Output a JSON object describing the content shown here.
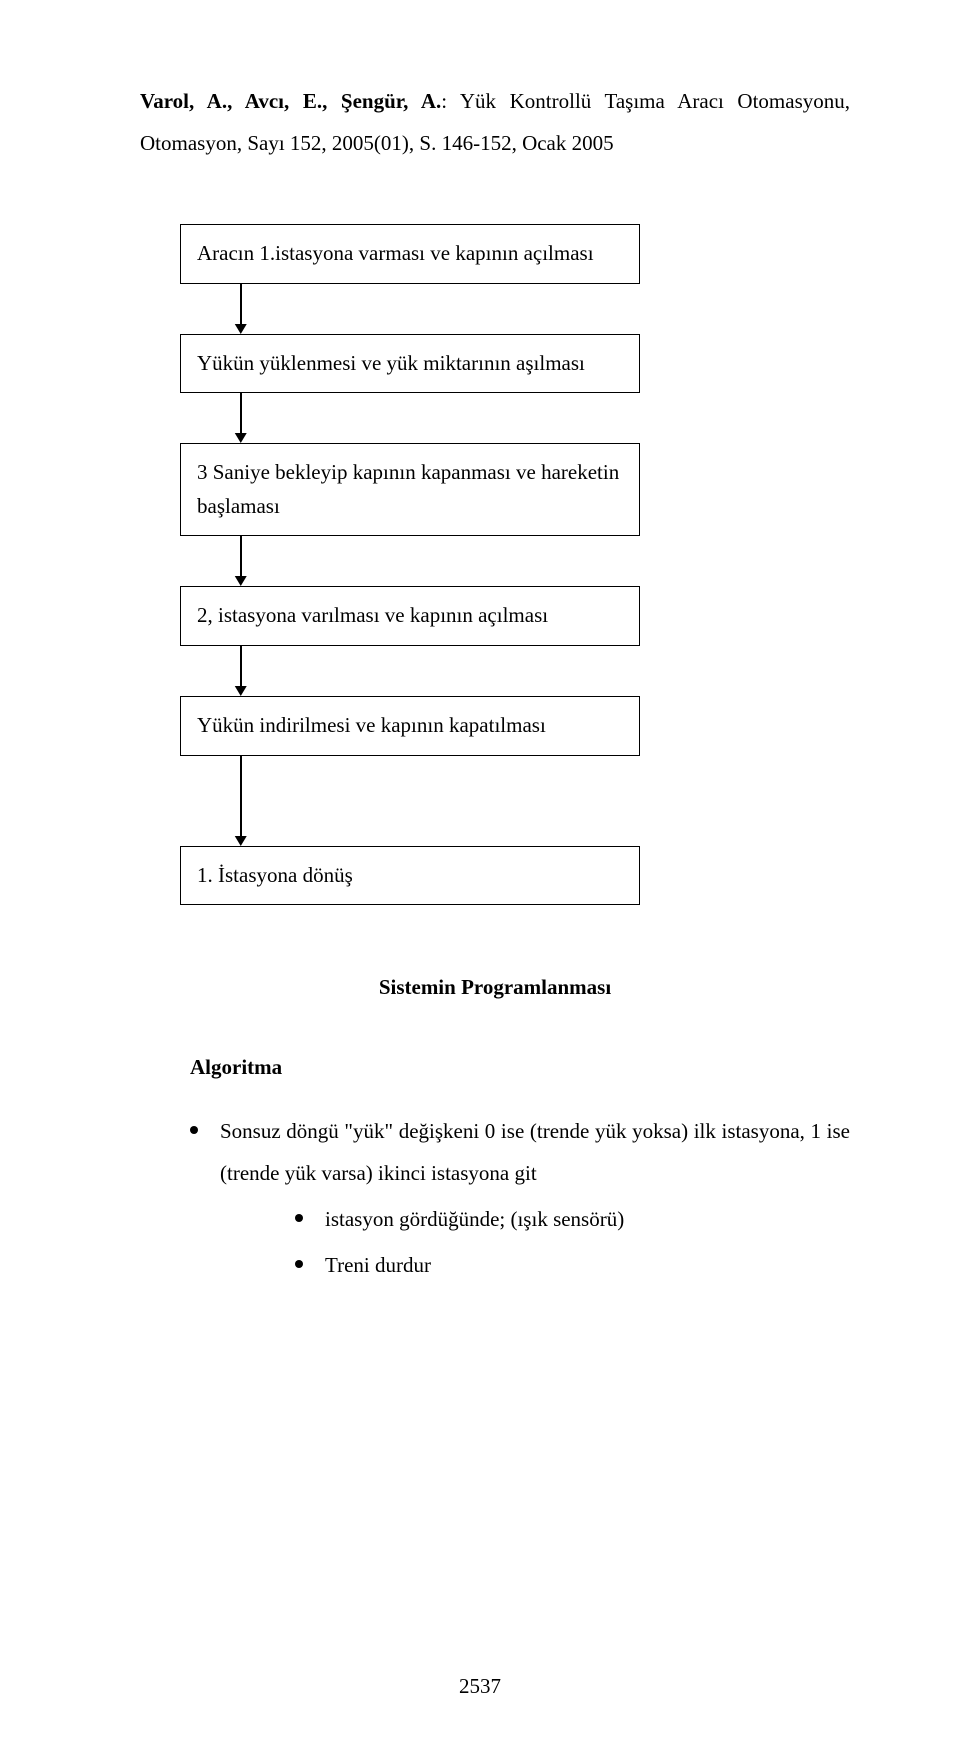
{
  "header": {
    "authors_bold": "Varol, A., Avcı, E., Şengür, A.",
    "title_rest": ": Yük Kontrollü Taşıma Aracı Otomasyonu, Otomasyon, Sayı 152, 2005(01), S. 146-152, Ocak 2005"
  },
  "flow": {
    "box1": "Aracın 1.istasyona varması ve kapının açılması",
    "box2": "Yükün yüklenmesi ve yük miktarının aşılması",
    "box3": "3 Saniye bekleyip kapının kapanması ve hareketin başlaması",
    "box4": "2, istasyona varılması ve kapının açılması",
    "box5": "Yükün indirilmesi ve kapının kapatılması",
    "box6": "1. İstasyona dönüş"
  },
  "section_title": "Sistemin Programlanması",
  "algorithm": {
    "title": "Algoritma",
    "items": [
      "Sonsuz döngü \"yük\" değişkeni 0 ise (trende yük yoksa) ilk istasyona, 1 ise (trende yük varsa) ikinci istasyona git",
      "istasyon gördüğünde; (ışık sensörü)",
      "Treni durdur"
    ]
  },
  "page_number": "2537"
}
